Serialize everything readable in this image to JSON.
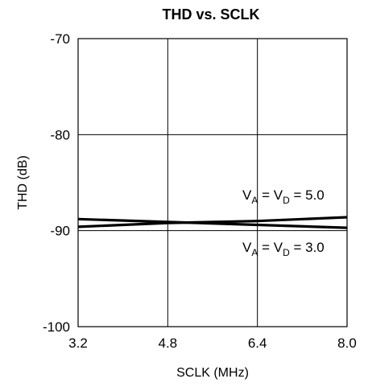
{
  "chart_data": {
    "type": "line",
    "title": "THD vs. SCLK",
    "xlabel": "SCLK (MHz)",
    "ylabel": "THD (dB)",
    "xlim": [
      3.2,
      8.0
    ],
    "ylim": [
      -100,
      -70
    ],
    "x_ticks": [
      "3.2",
      "4.8",
      "6.4",
      "8.0"
    ],
    "y_ticks": [
      "-70",
      "-80",
      "-90",
      "-100"
    ],
    "grid": true,
    "x": [
      3.2,
      4.8,
      6.4,
      8.0
    ],
    "series": [
      {
        "name": "VA = VD = 5.0",
        "values": [
          -89.6,
          -89.2,
          -89.0,
          -88.6
        ]
      },
      {
        "name": "VA = VD = 3.0",
        "values": [
          -88.8,
          -89.1,
          -89.4,
          -89.7
        ]
      }
    ],
    "annotations": {
      "upper": {
        "v1": "V",
        "s1": "A",
        "mid": " = V",
        "s2": "D",
        "end": " = 5.0"
      },
      "lower": {
        "v1": "V",
        "s1": "A",
        "mid": " = V",
        "s2": "D",
        "end": " = 3.0"
      }
    },
    "line_color": "#000000"
  }
}
